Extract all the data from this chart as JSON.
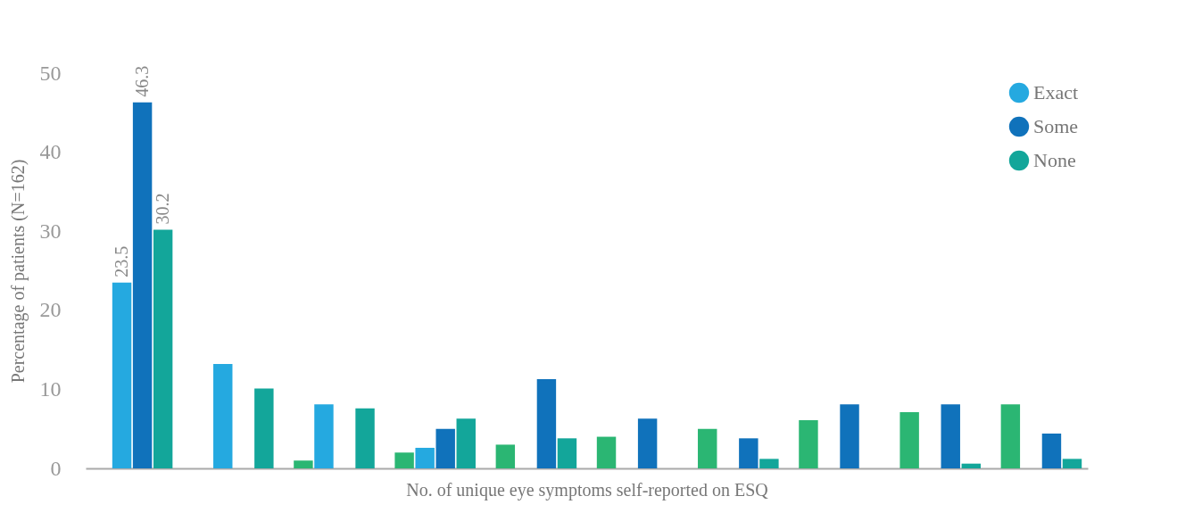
{
  "chart_data": {
    "type": "bar",
    "xlabel": "No. of unique eye symptoms self-reported on ESQ",
    "ylabel": "Percentage of patients (N=162)",
    "categories": [
      null,
      null,
      null,
      null,
      null,
      null,
      null,
      null,
      null,
      null
    ],
    "series": [
      {
        "color": "#2bb673",
        "values": [
          null,
          null,
          1.0,
          2.0,
          3.0,
          4.0,
          5.0,
          6.1,
          7.1,
          8.1
        ]
      },
      {
        "name": "Exact",
        "color": "#25a9e0",
        "values": [
          23.5,
          13.2,
          8.1,
          2.6,
          null,
          null,
          null,
          null,
          null,
          null
        ],
        "value_labels": [
          "23.5",
          null,
          null,
          null,
          null,
          null,
          null,
          null,
          null,
          null
        ]
      },
      {
        "name": "Some",
        "color": "#1072bb",
        "values": [
          46.3,
          null,
          null,
          5.0,
          11.3,
          6.3,
          3.8,
          8.1,
          8.1,
          4.4
        ],
        "value_labels": [
          "46.3",
          null,
          null,
          null,
          null,
          null,
          null,
          null,
          null,
          null
        ]
      },
      {
        "name": "None",
        "color": "#13a69a",
        "values": [
          30.2,
          10.1,
          7.6,
          6.3,
          3.8,
          null,
          1.2,
          null,
          0.6,
          1.2
        ],
        "value_labels": [
          "30.2",
          null,
          null,
          null,
          null,
          null,
          null,
          null,
          null,
          null
        ]
      }
    ],
    "ylim": [
      0,
      50
    ],
    "yticks": [
      0,
      10,
      20,
      30,
      40,
      50
    ],
    "grid": false,
    "legend": "top right"
  }
}
